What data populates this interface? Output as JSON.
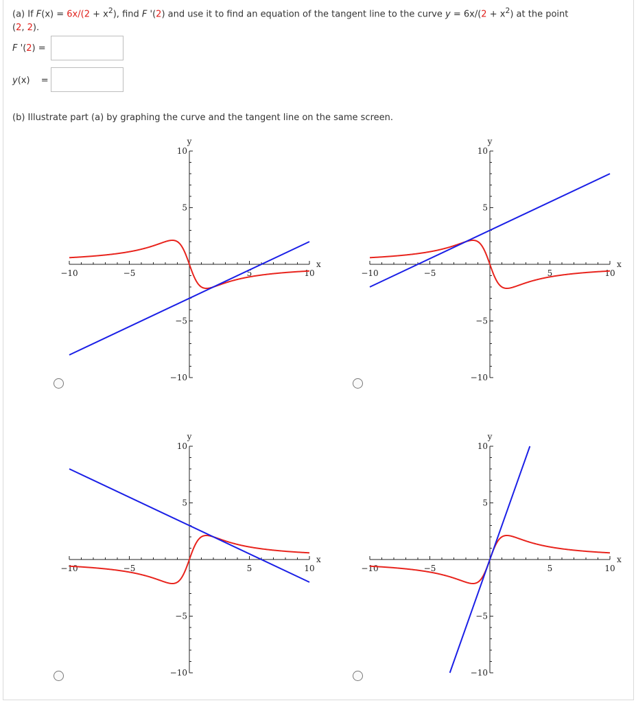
{
  "question": {
    "part_a": {
      "label": "(a) If",
      "f_name": "F",
      "f_var": "(x) = ",
      "f_expr_pre": "6x/(",
      "f_two": "2",
      "f_plus": " + x",
      "f_exp": "2",
      "f_close": "), find",
      "fp_name": "F",
      "fp_arg_pre": " '(",
      "fp_two": "2",
      "fp_arg_post": ") and use it to find an equation of the tangent line to the curve",
      "y_label": "y",
      "eq": " = 6x/(",
      "eq_two": "2",
      "eq_plus": " + x",
      "eq_exp": "2",
      "eq_close": ") at the point",
      "point_open": "(",
      "point_x": "2",
      "point_comma": ", ",
      "point_y": "2",
      "point_close": ")."
    },
    "fprime_label_f": "F",
    "fprime_label_mid": " '(",
    "fprime_label_two": "2",
    "fprime_label_end": ") =",
    "yx_label_y": "y",
    "yx_label_x": "(x)",
    "yx_eq": "=",
    "part_b": "(b) Illustrate part (a) by graphing the curve and the tangent line on the same screen."
  },
  "graphs": [
    {
      "id": "A",
      "tangent": {
        "slope": 0.5,
        "intercept": -3
      }
    },
    {
      "id": "B",
      "tangent": {
        "slope": 0.5,
        "intercept": 3
      }
    },
    {
      "id": "C",
      "tangent": {
        "slope": -0.5,
        "intercept": 3
      }
    },
    {
      "id": "D",
      "tangent": {
        "slope": 3,
        "intercept": 0
      }
    }
  ],
  "axis": {
    "x_label": "x",
    "y_label": "y",
    "x_ticks": [
      "−10",
      "−5",
      "5",
      "10"
    ],
    "y_ticks": [
      "10",
      "5",
      "−5",
      "−10"
    ]
  },
  "chart_data": {
    "type": "line",
    "xlim": [
      -10,
      10
    ],
    "ylim": [
      -10,
      10
    ],
    "series": [
      {
        "name": "curve",
        "expr": "6x/(2+x^2)",
        "color": "#e8231c"
      },
      {
        "name": "tangent",
        "color": "#1a1fe6"
      }
    ],
    "xlabel": "x",
    "ylabel": "y"
  }
}
